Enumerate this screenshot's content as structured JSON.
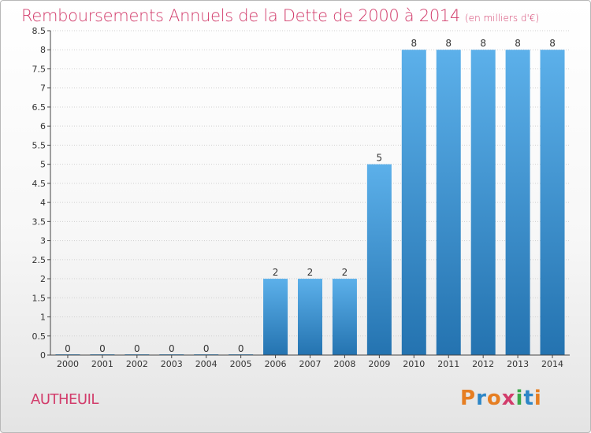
{
  "header": {
    "title": "Remboursements Annuels de la Dette de 2000 à 2014",
    "unit": "(en milliers d'€)"
  },
  "footer": {
    "commune": "AUTHEUIL",
    "logo_text": "Proxiti",
    "logo_colors": [
      "#e67e22",
      "#2c86c7",
      "#e67e22",
      "#d23c6b",
      "#3aa84a",
      "#2c86c7",
      "#e67e22"
    ]
  },
  "colors": {
    "title": "#d23c6b",
    "bar_top": "#5cb0ea",
    "bar_bottom": "#2473b0",
    "grid": "#d0d0d0",
    "axis": "#444444"
  },
  "chart_data": {
    "type": "bar",
    "categories": [
      "2000",
      "2001",
      "2002",
      "2003",
      "2004",
      "2005",
      "2006",
      "2007",
      "2008",
      "2009",
      "2010",
      "2011",
      "2012",
      "2013",
      "2014"
    ],
    "values": [
      0,
      0,
      0,
      0,
      0,
      0,
      2,
      2,
      2,
      5,
      8,
      8,
      8,
      8,
      8
    ],
    "data_labels": [
      "0",
      "0",
      "0",
      "0",
      "0",
      "0",
      "2",
      "2",
      "2",
      "5",
      "8",
      "8",
      "8",
      "8",
      "8"
    ],
    "ylim": [
      0,
      8.5
    ],
    "yticks": [
      "0",
      "0.5",
      "1",
      "1.5",
      "2",
      "2.5",
      "3",
      "3.5",
      "4",
      "4.5",
      "5",
      "5.5",
      "6",
      "6.5",
      "7",
      "7.5",
      "8",
      "8.5"
    ],
    "grid": true,
    "xlabel": "",
    "ylabel": ""
  }
}
